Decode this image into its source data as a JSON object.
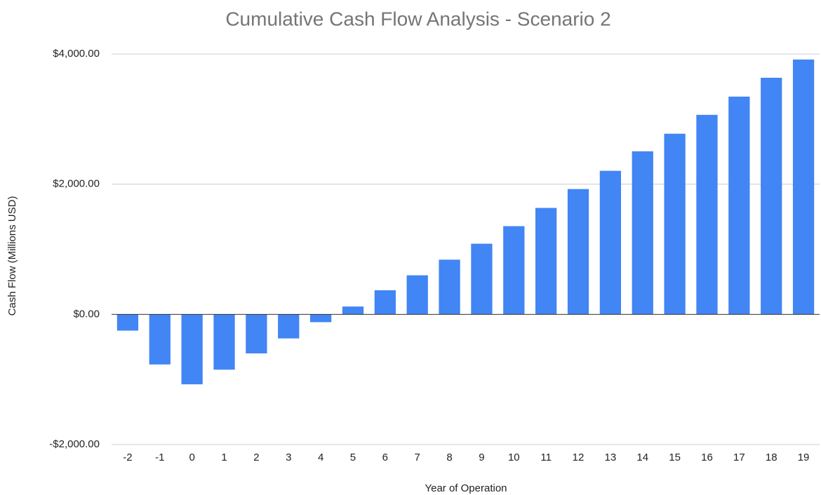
{
  "chart_data": {
    "type": "bar",
    "title": "Cumulative Cash Flow Analysis - Scenario 2",
    "x_label": "Year of Operation",
    "y_label": "Cash Flow (Millions USD)",
    "categories": [
      "-2",
      "-1",
      "0",
      "1",
      "2",
      "3",
      "4",
      "5",
      "6",
      "7",
      "8",
      "9",
      "10",
      "11",
      "12",
      "13",
      "14",
      "15",
      "16",
      "17",
      "18",
      "19"
    ],
    "values": [
      -250,
      -770,
      -1075,
      -850,
      -600,
      -370,
      -120,
      120,
      370,
      600,
      840,
      1085,
      1355,
      1635,
      1925,
      2205,
      2505,
      2775,
      3065,
      3345,
      3635,
      3915
    ],
    "color": "#4285f4",
    "ylim": [
      -2000,
      4000
    ],
    "yticks": [
      {
        "value": -2000,
        "label": "-$2,000.00"
      },
      {
        "value": 0,
        "label": "$0.00"
      },
      {
        "value": 2000,
        "label": "$2,000.00"
      },
      {
        "value": 4000,
        "label": "$4,000.00"
      }
    ],
    "grid": true
  }
}
